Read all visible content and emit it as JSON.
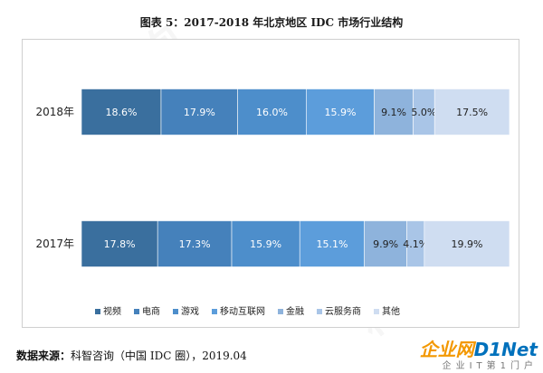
{
  "title": "图表 5：2017-2018 年北京地区 IDC 市场行业结构",
  "source": {
    "label": "数据来源：",
    "text": "科智咨询（中国 IDC 圈），2019.04"
  },
  "watermark": "科智咨询",
  "logo": {
    "part1": "企业网",
    "part2": "D1Net",
    "sub": "企业IT第1门户"
  },
  "colors": {
    "视频": "#3a6f9e",
    "电商": "#4581bb",
    "游戏": "#4d8ecb",
    "移动互联网": "#5c9ddb",
    "金融": "#8eb3dc",
    "云服务商": "#a9c5e7",
    "其他": "#cfddf1"
  },
  "chart_data": {
    "type": "bar",
    "orientation": "horizontal",
    "stacked": "percent",
    "categories": [
      "2018年",
      "2017年"
    ],
    "series": [
      {
        "name": "视频",
        "values": [
          18.6,
          17.8
        ],
        "labels": [
          "18.6%",
          "17.8%"
        ]
      },
      {
        "name": "电商",
        "values": [
          17.9,
          17.3
        ],
        "labels": [
          "17.9%",
          "17.3%"
        ]
      },
      {
        "name": "游戏",
        "values": [
          16.0,
          15.9
        ],
        "labels": [
          "16.0%",
          "15.9%"
        ]
      },
      {
        "name": "移动互联网",
        "values": [
          15.9,
          15.1
        ],
        "labels": [
          "15.9%",
          "15.1%"
        ]
      },
      {
        "name": "金融",
        "values": [
          9.1,
          9.9
        ],
        "labels": [
          "9.1%",
          "9.9%"
        ]
      },
      {
        "name": "云服务商",
        "values": [
          5.0,
          4.1
        ],
        "labels": [
          "5.0%",
          "4.1%"
        ]
      },
      {
        "name": "其他",
        "values": [
          17.5,
          19.9
        ],
        "labels": [
          "17.5%",
          "19.9%"
        ]
      }
    ],
    "xlim": [
      0,
      100
    ],
    "grid": false,
    "legend": "bottom"
  }
}
